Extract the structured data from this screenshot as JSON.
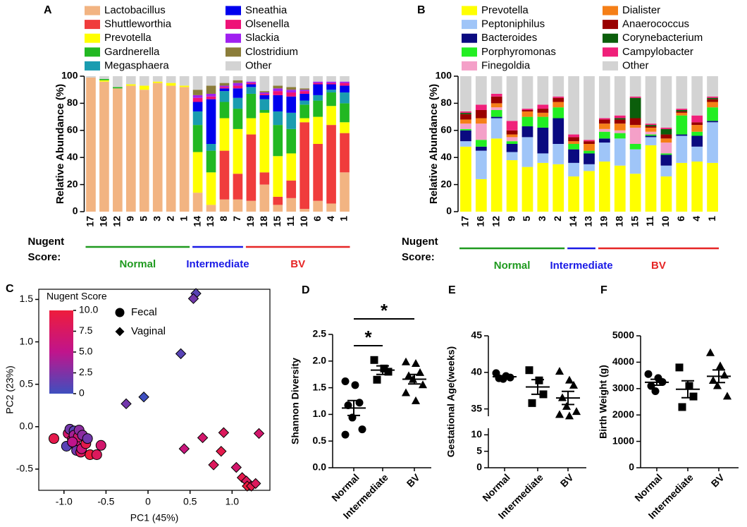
{
  "chart_data": [
    {
      "type": "stacked_bar",
      "panel": "A",
      "ylabel": "Relative Abundance (%)",
      "ylim": [
        0,
        100
      ],
      "yticks": [
        0,
        20,
        40,
        60,
        80,
        100
      ],
      "categories": [
        "17",
        "16",
        "12",
        "9",
        "5",
        "3",
        "2",
        "1",
        "14",
        "13",
        "8",
        "7",
        "19",
        "18",
        "15",
        "11",
        "10",
        "6",
        "4",
        "1"
      ],
      "group_title": [
        "Nugent",
        "Score:"
      ],
      "groups": [
        {
          "name": "Normal",
          "color": "#1f9a1f",
          "size": 8
        },
        {
          "name": "Intermediate",
          "color": "#1a1ae6",
          "size": 4
        },
        {
          "name": "BV",
          "color": "#e62626",
          "size": 8
        }
      ],
      "series": [
        {
          "name": "Lactobacillus",
          "color": "#f2b482",
          "values": [
            99,
            96,
            91,
            93,
            90,
            95,
            93,
            92,
            14,
            5,
            9,
            9,
            8,
            20,
            5,
            10,
            2,
            8,
            6,
            29
          ]
        },
        {
          "name": "Shuttleworthia",
          "color": "#f03c3c",
          "values": [
            0,
            0,
            0,
            0,
            0,
            0,
            0,
            0,
            0,
            0,
            36,
            19,
            49,
            9,
            6,
            13,
            64,
            42,
            58,
            29
          ]
        },
        {
          "name": "Prevotella",
          "color": "#ffff00",
          "values": [
            0,
            1,
            0,
            1,
            3,
            1,
            2,
            1,
            30,
            24,
            24,
            33,
            12,
            44,
            30,
            20,
            3,
            20,
            14,
            8
          ]
        },
        {
          "name": "Gardnerella",
          "color": "#22b822",
          "values": [
            0,
            1,
            1,
            0,
            0,
            0,
            0,
            0,
            20,
            16,
            12,
            15,
            18,
            2,
            23,
            18,
            10,
            12,
            10,
            14
          ]
        },
        {
          "name": "Megasphaera",
          "color": "#1a9cb0",
          "values": [
            0,
            0,
            0,
            0,
            0,
            0,
            0,
            0,
            10,
            5,
            8,
            8,
            5,
            8,
            10,
            12,
            3,
            4,
            2,
            8
          ]
        },
        {
          "name": "Sneathia",
          "color": "#0000ee",
          "values": [
            0,
            0,
            0,
            0,
            0,
            0,
            0,
            0,
            7,
            33,
            2,
            7,
            2,
            3,
            12,
            12,
            5,
            8,
            4,
            5
          ]
        },
        {
          "name": "Olsenella",
          "color": "#ee1177",
          "values": [
            0,
            0,
            0,
            0,
            0,
            0,
            0,
            0,
            3,
            2,
            1,
            2,
            1,
            1,
            3,
            3,
            2,
            1,
            1,
            2
          ]
        },
        {
          "name": "Slackia",
          "color": "#a020f0",
          "values": [
            0,
            0,
            0,
            0,
            0,
            0,
            0,
            0,
            2,
            2,
            1,
            2,
            1,
            1,
            2,
            2,
            1,
            1,
            1,
            1
          ]
        },
        {
          "name": "Clostridium",
          "color": "#8b7d3a",
          "values": [
            0,
            0,
            0,
            0,
            0,
            0,
            0,
            0,
            4,
            6,
            2,
            2,
            0,
            1,
            2,
            2,
            1,
            0,
            0,
            0
          ]
        },
        {
          "name": "Other",
          "color": "#d3d3d3",
          "values": [
            1,
            2,
            8,
            6,
            7,
            4,
            5,
            7,
            10,
            7,
            5,
            3,
            4,
            11,
            7,
            8,
            9,
            4,
            4,
            4
          ]
        }
      ]
    },
    {
      "type": "stacked_bar",
      "panel": "B",
      "ylabel": "Relative  Abundance (%)",
      "ylim": [
        0,
        100
      ],
      "yticks": [
        0,
        20,
        40,
        60,
        80,
        100
      ],
      "categories": [
        "17",
        "16",
        "12",
        "9",
        "5",
        "3",
        "2",
        "14",
        "13",
        "19",
        "18",
        "15",
        "11",
        "10",
        "6",
        "4",
        "1"
      ],
      "group_title": [
        "Nugent",
        "Score:"
      ],
      "groups": [
        {
          "name": "Normal",
          "color": "#1f9a1f",
          "size": 7
        },
        {
          "name": "Intermediate",
          "color": "#1a1ae6",
          "size": 2
        },
        {
          "name": "BV",
          "color": "#e62626",
          "size": 8
        }
      ],
      "series": [
        {
          "name": "Prevotella",
          "color": "#ffff00",
          "values": [
            48,
            24,
            54,
            38,
            33,
            36,
            35,
            26,
            30,
            37,
            34,
            28,
            49,
            26,
            36,
            37,
            36
          ]
        },
        {
          "name": "Peptoniphilus",
          "color": "#9fc5f8",
          "values": [
            4,
            21,
            15,
            6,
            22,
            7,
            15,
            10,
            5,
            14,
            20,
            18,
            6,
            8,
            20,
            11,
            30
          ]
        },
        {
          "name": "Bacteroides",
          "color": "#0a0a80",
          "values": [
            8,
            3,
            1,
            6,
            8,
            19,
            19,
            10,
            8,
            3,
            0,
            0,
            1,
            8,
            1,
            8,
            1
          ]
        },
        {
          "name": "Porphyromonas",
          "color": "#22ee22",
          "values": [
            1,
            5,
            5,
            2,
            7,
            8,
            8,
            4,
            2,
            5,
            4,
            4,
            1,
            1,
            14,
            3,
            10
          ]
        },
        {
          "name": "Finegoldia",
          "color": "#f4a0c8",
          "values": [
            4,
            12,
            2,
            3,
            0,
            0,
            0,
            0,
            0,
            2,
            2,
            12,
            2,
            8,
            0,
            0,
            0
          ]
        },
        {
          "name": "Dialister",
          "color": "#f57f17",
          "values": [
            3,
            4,
            3,
            2,
            4,
            3,
            4,
            2,
            5,
            4,
            5,
            2,
            3,
            3,
            2,
            5,
            4
          ]
        },
        {
          "name": "Anaerococcus",
          "color": "#990000",
          "values": [
            4,
            6,
            5,
            3,
            1,
            3,
            3,
            3,
            2,
            3,
            3,
            5,
            1,
            3,
            1,
            2,
            2
          ]
        },
        {
          "name": "Corynebacterium",
          "color": "#0b5e0b",
          "values": [
            1,
            0,
            0,
            0,
            0,
            0,
            0,
            0,
            0,
            0,
            1,
            15,
            1,
            4,
            1,
            0,
            1
          ]
        },
        {
          "name": "Campylobacter",
          "color": "#f0207a",
          "values": [
            1,
            4,
            2,
            7,
            1,
            3,
            1,
            2,
            1,
            1,
            2,
            1,
            1,
            1,
            1,
            5,
            1
          ]
        },
        {
          "name": "Other",
          "color": "#d3d3d3",
          "values": [
            26,
            21,
            13,
            33,
            24,
            21,
            15,
            43,
            47,
            31,
            29,
            15,
            35,
            38,
            24,
            29,
            15
          ]
        }
      ]
    },
    {
      "type": "scatter",
      "panel": "C",
      "xlabel": "PC1 (45%)",
      "ylabel": "PC2 (23%)",
      "xlim": [
        -1.3,
        1.45
      ],
      "ylim": [
        -0.75,
        1.62
      ],
      "xticks": [
        {
          "value": -1,
          "label": "-1.0"
        },
        -0.5,
        0,
        0.5,
        {
          "value": 1,
          "label": "1.0"
        }
      ],
      "yticks": [
        -0.5,
        {
          "value": 0,
          "label": "0.0"
        },
        0.5,
        {
          "value": 1,
          "label": "1.0"
        },
        1.5
      ],
      "colorbar": {
        "title": "Nugent Score",
        "lim": [
          0,
          10
        ],
        "ticks": [
          0,
          2.5,
          {
            "value": 5,
            "label": "5.0"
          },
          7.5,
          {
            "value": 10,
            "label": "10.0"
          }
        ],
        "colors": [
          "#3e4fbf",
          "#c0148c",
          "#ee1c3c"
        ]
      },
      "series": [
        {
          "name": "Fecal",
          "marker": "circle",
          "x": [
            -1.12,
            -0.95,
            -0.93,
            -0.9,
            -0.88,
            -0.88,
            -0.86,
            -0.85,
            -0.83,
            -0.82,
            -0.8,
            -0.79,
            -0.78,
            -0.74,
            -0.72,
            -0.69,
            -0.61,
            -0.56,
            -0.97,
            -0.9
          ],
          "y": [
            -0.14,
            -0.08,
            -0.03,
            -0.15,
            -0.05,
            -0.1,
            -0.22,
            -0.28,
            -0.12,
            -0.04,
            -0.3,
            -0.26,
            -0.1,
            -0.2,
            -0.14,
            -0.33,
            -0.33,
            -0.22,
            -0.23,
            -0.18
          ],
          "color_values": [
            9,
            7,
            2,
            8,
            1,
            4,
            6,
            2,
            7,
            3,
            8,
            6,
            3,
            9,
            2,
            10,
            8,
            7,
            1,
            5
          ]
        },
        {
          "name": "Vaginal",
          "marker": "diamond",
          "x": [
            0.57,
            0.54,
            0.39,
            -0.05,
            -0.26,
            0.43,
            0.65,
            0.78,
            0.87,
            0.9,
            1.05,
            1.12,
            1.17,
            1.18,
            1.23,
            1.28,
            1.32
          ],
          "y": [
            1.57,
            1.51,
            0.86,
            0.35,
            0.27,
            -0.26,
            -0.13,
            -0.45,
            -0.29,
            -0.07,
            -0.48,
            -0.6,
            -0.64,
            -0.7,
            -0.7,
            -0.67,
            -0.08
          ],
          "color_values": [
            1,
            2,
            1,
            0,
            2,
            6,
            7,
            8,
            9,
            8,
            7,
            9,
            8,
            10,
            9,
            8,
            7
          ]
        }
      ]
    },
    {
      "type": "dot",
      "panel": "D",
      "ylabel": "Shannon Diversity",
      "categories": [
        "Normal",
        "Intermediate",
        "BV"
      ],
      "markers": [
        "circle",
        "square",
        "triangle"
      ],
      "ylim": [
        0,
        2.5
      ],
      "yticks": [
        {
          "value": 0,
          "label": "0.0"
        },
        0.5,
        {
          "value": 1,
          "label": "1.0"
        },
        1.5,
        {
          "value": 2,
          "label": "2.0"
        },
        2.5
      ],
      "points": [
        [
          1.62,
          1.55,
          1.22,
          1.17,
          0.94,
          0.72,
          0.62
        ],
        [
          2.02,
          1.86,
          1.8,
          1.65
        ],
        [
          1.98,
          1.95,
          1.78,
          1.72,
          1.65,
          1.55,
          1.4,
          1.25
        ]
      ],
      "mean": [
        1.12,
        1.83,
        1.66
      ],
      "sem": [
        0.14,
        0.08,
        0.09
      ],
      "significance": [
        {
          "label": "*",
          "pair": [
            0,
            1
          ]
        },
        {
          "label": "*",
          "pair": [
            0,
            2
          ]
        }
      ]
    },
    {
      "type": "dot",
      "panel": "E",
      "ylabel": "Gestational Age(weeks)",
      "categories": [
        "Normal",
        "Intermediate",
        "BV"
      ],
      "markers": [
        "circle",
        "square",
        "triangle"
      ],
      "ylim": [
        0,
        45
      ],
      "ybreak": [
        12,
        34
      ],
      "yticks": [
        0,
        5,
        10,
        35,
        40,
        45
      ],
      "points": [
        [
          39.9,
          39.5,
          39.3,
          39.2,
          39.1
        ],
        [
          40.3,
          38.9,
          37.0,
          35.8
        ],
        [
          40.1,
          38.9,
          38.2,
          36.5,
          35.3,
          34.6,
          34.2,
          34.0
        ]
      ],
      "mean": [
        39.4,
        38.0,
        36.5
      ],
      "sem": [
        0.15,
        1.0,
        0.9
      ]
    },
    {
      "type": "dot",
      "panel": "F",
      "ylabel": "Birth Weight (g)",
      "categories": [
        "Normal",
        "Intermediate",
        "BV"
      ],
      "markers": [
        "circle",
        "square",
        "triangle"
      ],
      "ylim": [
        0,
        5000
      ],
      "yticks": [
        0,
        1000,
        2000,
        3000,
        4000,
        5000
      ],
      "points": [
        [
          3550,
          3400,
          3250,
          3100,
          2900
        ],
        [
          3800,
          3100,
          2700,
          2300
        ],
        [
          4350,
          3850,
          3500,
          3300,
          3100,
          2700
        ]
      ],
      "mean": [
        3240,
        2975,
        3467
      ],
      "sem": [
        112,
        320,
        240
      ]
    }
  ]
}
